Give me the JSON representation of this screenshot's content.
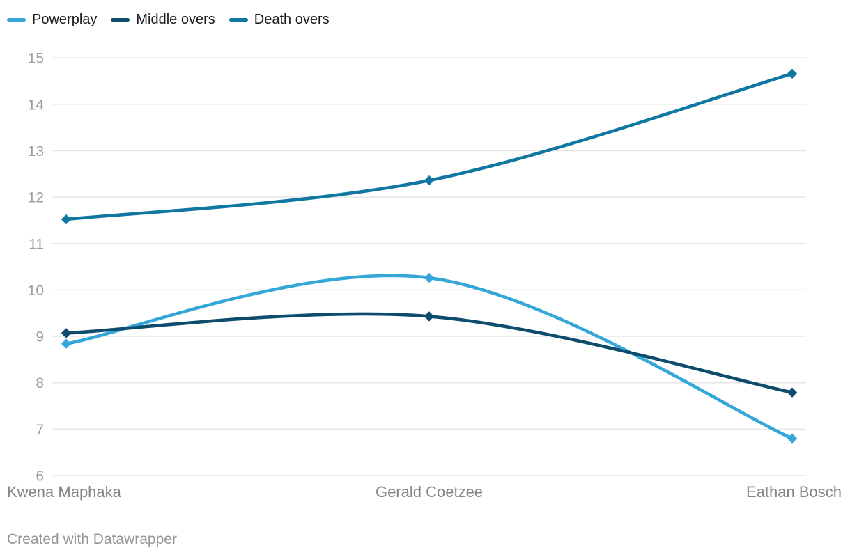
{
  "chart_data": {
    "type": "line",
    "title": "",
    "categories": [
      "Kwena Maphaka",
      "Gerald Coetzee",
      "Eathan Bosch"
    ],
    "series": [
      {
        "name": "Powerplay",
        "color": "#34a7d8",
        "values": [
          8.84,
          10.26,
          6.8
        ]
      },
      {
        "name": "Middle overs",
        "color": "#0e4c6d",
        "values": [
          9.07,
          9.43,
          7.79
        ]
      },
      {
        "name": "Death overs",
        "color": "#0f77a2",
        "values": [
          11.52,
          12.36,
          14.66
        ]
      }
    ],
    "ylim": [
      6,
      15
    ],
    "yticks": [
      6,
      7,
      8,
      9,
      10,
      11,
      12,
      13,
      14,
      15
    ],
    "xlabel": "",
    "ylabel": "",
    "grid": true,
    "legend_position": "top-left",
    "marker": "diamond",
    "curve": "smooth"
  },
  "legend": {
    "items": [
      "Powerplay",
      "Middle overs",
      "Death overs"
    ]
  },
  "footer": {
    "attribution": "Created with Datawrapper"
  },
  "colors": {
    "background": "#ffffff",
    "gridline": "#e6e6e6",
    "y_tick_label": "#9d9da1",
    "x_tick_label": "#84848a",
    "legend_text": "#1a1a1e",
    "attribution_text": "#959595"
  }
}
